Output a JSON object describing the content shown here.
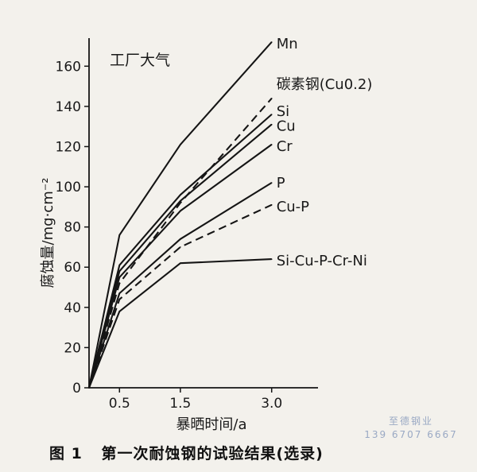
{
  "chart_data": {
    "type": "line",
    "title": "工厂大气",
    "xlabel": "暴晒时间/a",
    "ylabel": "腐蚀量/mg·cm⁻²",
    "xlim": [
      0,
      3.5
    ],
    "ylim": [
      0,
      170
    ],
    "x_ticks": [
      "0.5",
      "1.5",
      "3.0"
    ],
    "y_ticks": [
      0,
      20,
      40,
      60,
      80,
      100,
      120,
      140,
      160
    ],
    "x": [
      0,
      0.5,
      1.5,
      3.0
    ],
    "grid": false,
    "legend": "labels at line ends",
    "series": [
      {
        "name": "Mn",
        "values": [
          0,
          76,
          121,
          172
        ],
        "style": "solid"
      },
      {
        "name": "碳素钢(Cu0.2)",
        "values": [
          0,
          52,
          92,
          144
        ],
        "style": "dashed"
      },
      {
        "name": "Si",
        "values": [
          0,
          61,
          96,
          136
        ],
        "style": "solid"
      },
      {
        "name": "Cu",
        "values": [
          0,
          58,
          93,
          131
        ],
        "style": "solid"
      },
      {
        "name": "Cr",
        "values": [
          0,
          55,
          88,
          121
        ],
        "style": "solid"
      },
      {
        "name": "P",
        "values": [
          0,
          47,
          74,
          102
        ],
        "style": "solid"
      },
      {
        "name": "Cu-P",
        "values": [
          0,
          44,
          70,
          91
        ],
        "style": "dashed"
      },
      {
        "name": "Si-Cu-P-Cr-Ni",
        "values": [
          0,
          38,
          62,
          64
        ],
        "style": "solid"
      }
    ]
  },
  "caption": {
    "number": "图 1",
    "text": "第一次耐蚀钢的试验结果(选录)"
  },
  "watermark": {
    "line1": "至德钢业",
    "line2": "139 6707 6667"
  },
  "colors": {
    "line": "#151515",
    "background": "#f3f1ec",
    "watermark": "#9aa9c4"
  }
}
